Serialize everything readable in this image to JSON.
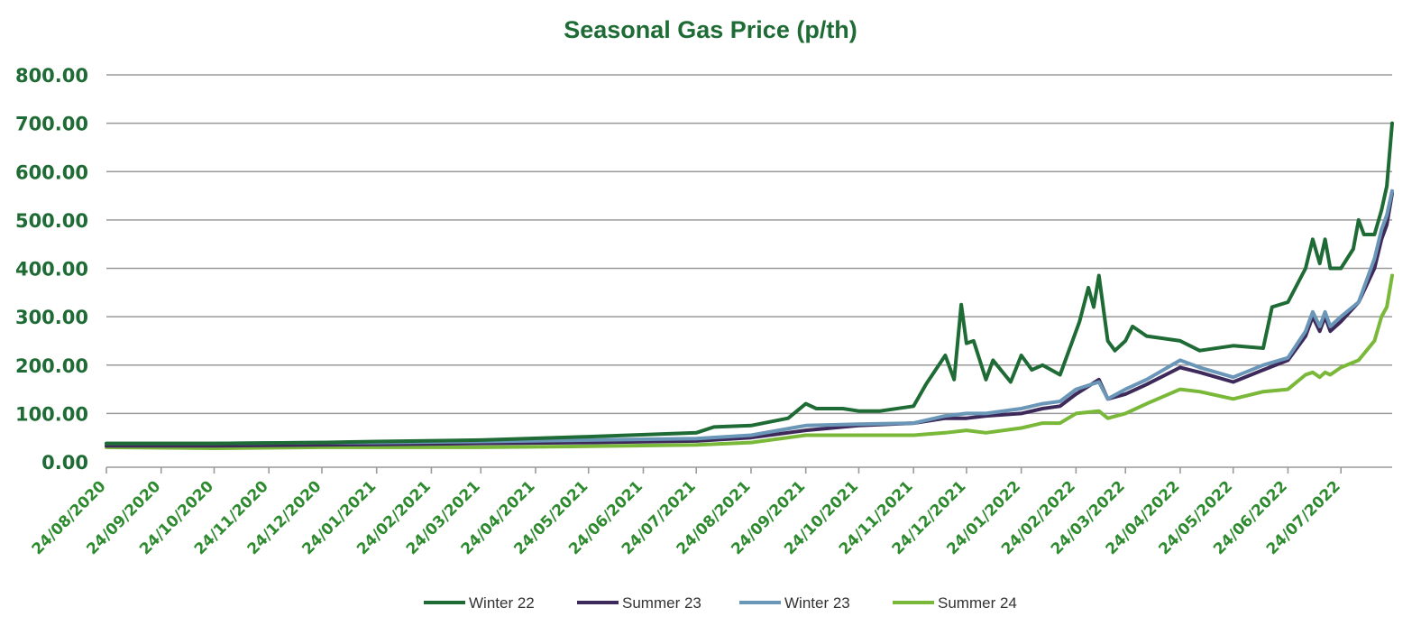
{
  "chart_data": {
    "type": "line",
    "title": "Seasonal Gas Price (p/th)",
    "xlabel": "",
    "ylabel": "",
    "ylim": [
      0,
      800
    ],
    "yticks": [
      "0.00",
      "100.00",
      "200.00",
      "300.00",
      "400.00",
      "500.00",
      "600.00",
      "700.00",
      "800.00"
    ],
    "xlim": [
      "24/08/2020",
      "22/08/2022"
    ],
    "xticks": [
      "24/08/2020",
      "24/09/2020",
      "24/10/2020",
      "24/11/2020",
      "24/12/2020",
      "24/01/2021",
      "24/02/2021",
      "24/03/2021",
      "24/04/2021",
      "24/05/2021",
      "24/06/2021",
      "24/07/2021",
      "24/08/2021",
      "24/09/2021",
      "24/10/2021",
      "24/11/2021",
      "24/12/2021",
      "24/01/2022",
      "24/02/2022",
      "24/03/2022",
      "24/04/2022",
      "24/05/2022",
      "24/06/2022",
      "24/07/2022"
    ],
    "grid": true,
    "legend_position": "bottom",
    "series": [
      {
        "name": "Winter 22",
        "color": "#1f6b35",
        "points": [
          [
            "24/08/2020",
            38
          ],
          [
            "24/10/2020",
            38
          ],
          [
            "24/12/2020",
            40
          ],
          [
            "24/01/2021",
            42
          ],
          [
            "24/03/2021",
            45
          ],
          [
            "24/05/2021",
            52
          ],
          [
            "24/07/2021",
            60
          ],
          [
            "03/08/2021",
            72
          ],
          [
            "24/08/2021",
            75
          ],
          [
            "14/09/2021",
            90
          ],
          [
            "24/09/2021",
            120
          ],
          [
            "30/09/2021",
            110
          ],
          [
            "15/10/2021",
            110
          ],
          [
            "24/10/2021",
            105
          ],
          [
            "05/11/2021",
            105
          ],
          [
            "24/11/2021",
            115
          ],
          [
            "01/12/2021",
            160
          ],
          [
            "12/12/2021",
            220
          ],
          [
            "17/12/2021",
            170
          ],
          [
            "21/12/2021",
            325
          ],
          [
            "24/12/2021",
            245
          ],
          [
            "28/12/2021",
            250
          ],
          [
            "04/01/2022",
            170
          ],
          [
            "08/01/2022",
            210
          ],
          [
            "18/01/2022",
            165
          ],
          [
            "24/01/2022",
            220
          ],
          [
            "30/01/2022",
            190
          ],
          [
            "05/02/2022",
            200
          ],
          [
            "15/02/2022",
            180
          ],
          [
            "24/02/2022",
            270
          ],
          [
            "26/02/2022",
            290
          ],
          [
            "03/03/2022",
            360
          ],
          [
            "06/03/2022",
            320
          ],
          [
            "09/03/2022",
            385
          ],
          [
            "14/03/2022",
            250
          ],
          [
            "18/03/2022",
            230
          ],
          [
            "24/03/2022",
            250
          ],
          [
            "28/03/2022",
            280
          ],
          [
            "05/04/2022",
            260
          ],
          [
            "24/04/2022",
            250
          ],
          [
            "05/05/2022",
            230
          ],
          [
            "24/05/2022",
            240
          ],
          [
            "10/06/2022",
            235
          ],
          [
            "15/06/2022",
            320
          ],
          [
            "24/06/2022",
            330
          ],
          [
            "04/07/2022",
            400
          ],
          [
            "08/07/2022",
            460
          ],
          [
            "12/07/2022",
            410
          ],
          [
            "15/07/2022",
            460
          ],
          [
            "18/07/2022",
            400
          ],
          [
            "24/07/2022",
            400
          ],
          [
            "31/07/2022",
            440
          ],
          [
            "03/08/2022",
            500
          ],
          [
            "06/08/2022",
            470
          ],
          [
            "12/08/2022",
            470
          ],
          [
            "16/08/2022",
            520
          ],
          [
            "19/08/2022",
            570
          ],
          [
            "22/08/2022",
            700
          ]
        ]
      },
      {
        "name": "Summer 23",
        "color": "#3d2a5a",
        "points": [
          [
            "24/08/2020",
            33
          ],
          [
            "24/10/2020",
            33
          ],
          [
            "24/12/2020",
            35
          ],
          [
            "24/01/2021",
            36
          ],
          [
            "24/03/2021",
            38
          ],
          [
            "24/05/2021",
            40
          ],
          [
            "24/07/2021",
            43
          ],
          [
            "24/08/2021",
            50
          ],
          [
            "24/09/2021",
            65
          ],
          [
            "24/10/2021",
            75
          ],
          [
            "24/11/2021",
            80
          ],
          [
            "12/12/2021",
            90
          ],
          [
            "24/12/2021",
            90
          ],
          [
            "04/01/2022",
            95
          ],
          [
            "24/01/2022",
            100
          ],
          [
            "05/02/2022",
            110
          ],
          [
            "15/02/2022",
            115
          ],
          [
            "24/02/2022",
            140
          ],
          [
            "09/03/2022",
            170
          ],
          [
            "14/03/2022",
            130
          ],
          [
            "24/03/2022",
            140
          ],
          [
            "05/04/2022",
            160
          ],
          [
            "24/04/2022",
            195
          ],
          [
            "05/05/2022",
            185
          ],
          [
            "24/05/2022",
            165
          ],
          [
            "10/06/2022",
            190
          ],
          [
            "24/06/2022",
            210
          ],
          [
            "04/07/2022",
            260
          ],
          [
            "08/07/2022",
            300
          ],
          [
            "12/07/2022",
            270
          ],
          [
            "15/07/2022",
            300
          ],
          [
            "18/07/2022",
            270
          ],
          [
            "24/07/2022",
            290
          ],
          [
            "03/08/2022",
            330
          ],
          [
            "12/08/2022",
            400
          ],
          [
            "16/08/2022",
            460
          ],
          [
            "19/08/2022",
            490
          ],
          [
            "22/08/2022",
            555
          ]
        ]
      },
      {
        "name": "Winter 23",
        "color": "#6a96b8",
        "points": [
          [
            "24/08/2020",
            38
          ],
          [
            "24/10/2020",
            38
          ],
          [
            "24/12/2020",
            40
          ],
          [
            "24/01/2021",
            40
          ],
          [
            "24/03/2021",
            42
          ],
          [
            "24/05/2021",
            45
          ],
          [
            "24/07/2021",
            48
          ],
          [
            "24/08/2021",
            55
          ],
          [
            "24/09/2021",
            75
          ],
          [
            "24/10/2021",
            78
          ],
          [
            "24/11/2021",
            80
          ],
          [
            "12/12/2021",
            95
          ],
          [
            "24/12/2021",
            100
          ],
          [
            "04/01/2022",
            100
          ],
          [
            "24/01/2022",
            110
          ],
          [
            "05/02/2022",
            120
          ],
          [
            "15/02/2022",
            125
          ],
          [
            "24/02/2022",
            150
          ],
          [
            "09/03/2022",
            165
          ],
          [
            "14/03/2022",
            130
          ],
          [
            "24/03/2022",
            150
          ],
          [
            "05/04/2022",
            170
          ],
          [
            "24/04/2022",
            210
          ],
          [
            "05/05/2022",
            195
          ],
          [
            "24/05/2022",
            175
          ],
          [
            "10/06/2022",
            200
          ],
          [
            "24/06/2022",
            215
          ],
          [
            "04/07/2022",
            270
          ],
          [
            "08/07/2022",
            310
          ],
          [
            "12/07/2022",
            280
          ],
          [
            "15/07/2022",
            310
          ],
          [
            "18/07/2022",
            280
          ],
          [
            "24/07/2022",
            300
          ],
          [
            "03/08/2022",
            330
          ],
          [
            "12/08/2022",
            420
          ],
          [
            "16/08/2022",
            480
          ],
          [
            "19/08/2022",
            510
          ],
          [
            "22/08/2022",
            560
          ]
        ]
      },
      {
        "name": "Summer 24",
        "color": "#7ab83a",
        "points": [
          [
            "24/08/2020",
            30
          ],
          [
            "24/10/2020",
            28
          ],
          [
            "24/12/2020",
            30
          ],
          [
            "24/01/2021",
            30
          ],
          [
            "24/03/2021",
            30
          ],
          [
            "24/05/2021",
            32
          ],
          [
            "24/07/2021",
            35
          ],
          [
            "24/08/2021",
            40
          ],
          [
            "24/09/2021",
            55
          ],
          [
            "24/10/2021",
            55
          ],
          [
            "24/11/2021",
            55
          ],
          [
            "12/12/2021",
            60
          ],
          [
            "24/12/2021",
            65
          ],
          [
            "04/01/2022",
            60
          ],
          [
            "24/01/2022",
            70
          ],
          [
            "05/02/2022",
            80
          ],
          [
            "15/02/2022",
            80
          ],
          [
            "24/02/2022",
            100
          ],
          [
            "09/03/2022",
            105
          ],
          [
            "14/03/2022",
            90
          ],
          [
            "24/03/2022",
            100
          ],
          [
            "05/04/2022",
            120
          ],
          [
            "24/04/2022",
            150
          ],
          [
            "05/05/2022",
            145
          ],
          [
            "24/05/2022",
            130
          ],
          [
            "10/06/2022",
            145
          ],
          [
            "24/06/2022",
            150
          ],
          [
            "04/07/2022",
            180
          ],
          [
            "08/07/2022",
            185
          ],
          [
            "12/07/2022",
            175
          ],
          [
            "15/07/2022",
            185
          ],
          [
            "18/07/2022",
            180
          ],
          [
            "24/07/2022",
            195
          ],
          [
            "03/08/2022",
            210
          ],
          [
            "12/08/2022",
            250
          ],
          [
            "16/08/2022",
            300
          ],
          [
            "19/08/2022",
            320
          ],
          [
            "22/08/2022",
            385
          ]
        ]
      }
    ]
  }
}
